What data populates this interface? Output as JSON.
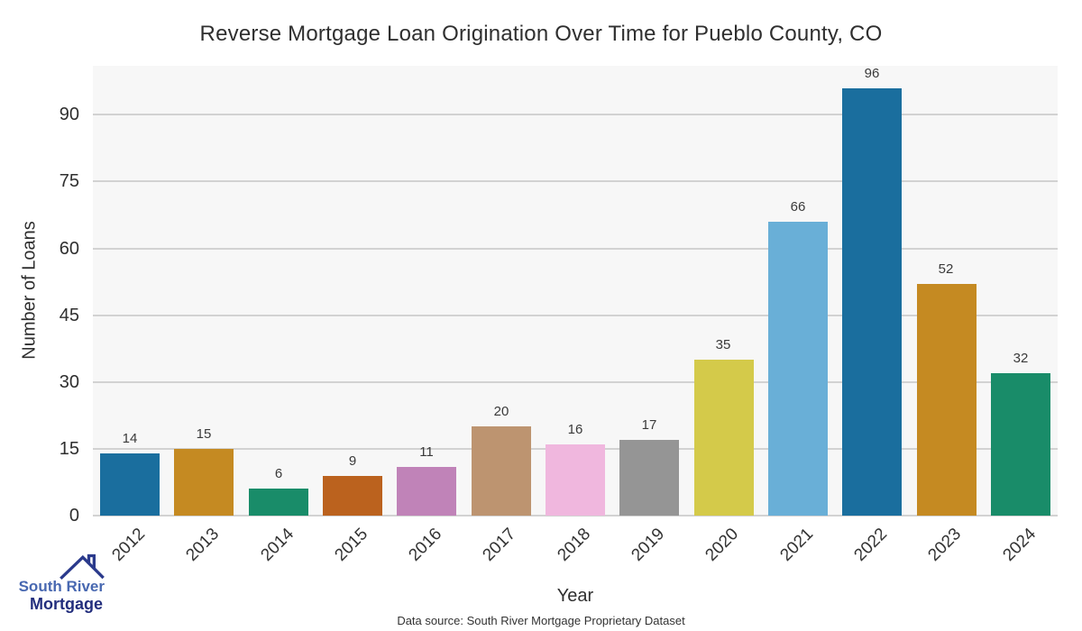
{
  "title": "Reverse Mortgage Loan Origination Over Time for Pueblo County, CO",
  "chart_data": {
    "type": "bar",
    "categories": [
      "2012",
      "2013",
      "2014",
      "2015",
      "2016",
      "2017",
      "2018",
      "2019",
      "2020",
      "2021",
      "2022",
      "2023",
      "2024"
    ],
    "values": [
      14,
      15,
      6,
      9,
      11,
      20,
      16,
      17,
      35,
      66,
      96,
      52,
      32
    ],
    "bar_colors": [
      "#1a6e9e",
      "#c58a22",
      "#198c69",
      "#bb621e",
      "#c083b8",
      "#bd9470",
      "#f0b7de",
      "#959595",
      "#d4ca4a",
      "#69afd7",
      "#1a6e9e",
      "#c58a22",
      "#198c69"
    ],
    "title": "Reverse Mortgage Loan Origination Over Time for Pueblo County, CO",
    "xlabel": "Year",
    "ylabel": "Number of Loans",
    "yticks": [
      0,
      15,
      30,
      45,
      60,
      75,
      90
    ],
    "ylim": [
      0,
      101
    ],
    "grid": true,
    "legend": "none",
    "plot_bg_color": "#f7f7f7",
    "gridline_color": "#d2d2d2"
  },
  "footer": {
    "source_text": "Data source: South River Mortgage Proprietary Dataset"
  },
  "logo": {
    "line1": "South River",
    "line2": "Mortgage",
    "line1_color": "#4868b1",
    "line2_color": "#232e7d",
    "roof_color": "#2b3a8c"
  }
}
